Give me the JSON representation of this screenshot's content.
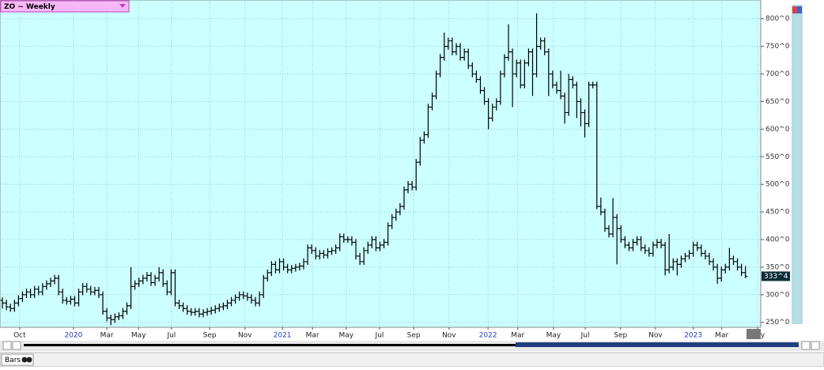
{
  "toolbar": {
    "symbol": "ZO ~ Weekly"
  },
  "chart_data": {
    "type": "ohlc",
    "xlim": [
      -0.6,
      188.8
    ],
    "xticks": [
      {
        "value": 4.3,
        "label": "Oct"
      },
      {
        "value": 17.7,
        "label": "2020"
      },
      {
        "value": 26,
        "label": "Mar"
      },
      {
        "value": 33.9,
        "label": "May"
      },
      {
        "value": 42.1,
        "label": "Jul"
      },
      {
        "value": 51.6,
        "label": "Sep"
      },
      {
        "value": 60.4,
        "label": "Nov"
      },
      {
        "value": 69.7,
        "label": "2021"
      },
      {
        "value": 77.2,
        "label": "Mar"
      },
      {
        "value": 85.6,
        "label": "May"
      },
      {
        "value": 93.9,
        "label": "Jul"
      },
      {
        "value": 102.4,
        "label": "Sep"
      },
      {
        "value": 111.2,
        "label": "Nov"
      },
      {
        "value": 120.9,
        "label": "2022"
      },
      {
        "value": 128.3,
        "label": "Mar"
      },
      {
        "value": 137.2,
        "label": "May"
      },
      {
        "value": 145.1,
        "label": "Jul"
      },
      {
        "value": 153.9,
        "label": "Sep"
      },
      {
        "value": 162.6,
        "label": "Nov"
      },
      {
        "value": 172,
        "label": "2023"
      },
      {
        "value": 179.1,
        "label": "Mar"
      },
      {
        "value": 188,
        "label": "May"
      }
    ],
    "ylim": [
      241,
      834
    ],
    "yticks": [
      {
        "value": 250,
        "label": "250^0"
      },
      {
        "value": 300,
        "label": "300^0"
      },
      {
        "value": 350,
        "label": "350^0"
      },
      {
        "value": 400,
        "label": "400^0"
      },
      {
        "value": 450,
        "label": "450^0"
      },
      {
        "value": 500,
        "label": "500^0"
      },
      {
        "value": 550,
        "label": "550^0"
      },
      {
        "value": 600,
        "label": "600^0"
      },
      {
        "value": 650,
        "label": "650^0"
      },
      {
        "value": 700,
        "label": "700^0"
      },
      {
        "value": 750,
        "label": "750^0"
      },
      {
        "value": 800,
        "label": "800^0"
      }
    ],
    "grid": true,
    "year_label_color": "#1f3fbf",
    "series": [
      {
        "color": "#000000",
        "last_price": {
          "value": 333.5,
          "label": "333^4"
        },
        "ohlc": [
          [
            290,
            295,
            275,
            285
          ],
          [
            285,
            291,
            272,
            278
          ],
          [
            278,
            284,
            269,
            275
          ],
          [
            275,
            291,
            269,
            285
          ],
          [
            285,
            299,
            279,
            293
          ],
          [
            293,
            306,
            287,
            300
          ],
          [
            300,
            311,
            294,
            305
          ],
          [
            305,
            311,
            294,
            300
          ],
          [
            300,
            316,
            294,
            310
          ],
          [
            310,
            316,
            299,
            305
          ],
          [
            305,
            321,
            299,
            315
          ],
          [
            315,
            326,
            309,
            320
          ],
          [
            320,
            331,
            314,
            325
          ],
          [
            325,
            336,
            319,
            330
          ],
          [
            330,
            336,
            299,
            305
          ],
          [
            305,
            311,
            284,
            290
          ],
          [
            290,
            296,
            282,
            288
          ],
          [
            288,
            298,
            282,
            292
          ],
          [
            292,
            298,
            279,
            285
          ],
          [
            285,
            311,
            279,
            305
          ],
          [
            305,
            321,
            299,
            315
          ],
          [
            315,
            321,
            304,
            310
          ],
          [
            310,
            316,
            299,
            305
          ],
          [
            305,
            314,
            299,
            308
          ],
          [
            308,
            314,
            294,
            300
          ],
          [
            300,
            306,
            264,
            270
          ],
          [
            270,
            276,
            252,
            258
          ],
          [
            258,
            264,
            245,
            255
          ],
          [
            255,
            266,
            249,
            260
          ],
          [
            260,
            268,
            254,
            262
          ],
          [
            262,
            276,
            256,
            270
          ],
          [
            270,
            286,
            264,
            280
          ],
          [
            280,
            350,
            274,
            315
          ],
          [
            315,
            326,
            309,
            320
          ],
          [
            320,
            331,
            314,
            325
          ],
          [
            325,
            336,
            319,
            330
          ],
          [
            330,
            341,
            324,
            335
          ],
          [
            335,
            341,
            316,
            322
          ],
          [
            322,
            336,
            316,
            330
          ],
          [
            330,
            350,
            324,
            340
          ],
          [
            340,
            346,
            314,
            320
          ],
          [
            320,
            326,
            299,
            305
          ],
          [
            305,
            346,
            299,
            340
          ],
          [
            340,
            346,
            279,
            285
          ],
          [
            285,
            291,
            274,
            280
          ],
          [
            280,
            286,
            269,
            275
          ],
          [
            275,
            281,
            264,
            270
          ],
          [
            270,
            276,
            262,
            268
          ],
          [
            268,
            276,
            262,
            270
          ],
          [
            270,
            276,
            259,
            265
          ],
          [
            265,
            274,
            259,
            268
          ],
          [
            268,
            276,
            262,
            270
          ],
          [
            270,
            278,
            264,
            272
          ],
          [
            272,
            281,
            266,
            275
          ],
          [
            275,
            284,
            269,
            278
          ],
          [
            278,
            286,
            272,
            280
          ],
          [
            280,
            291,
            274,
            285
          ],
          [
            285,
            296,
            279,
            290
          ],
          [
            290,
            301,
            284,
            295
          ],
          [
            295,
            306,
            289,
            300
          ],
          [
            300,
            306,
            292,
            298
          ],
          [
            298,
            304,
            289,
            295
          ],
          [
            295,
            301,
            284,
            290
          ],
          [
            290,
            296,
            279,
            285
          ],
          [
            285,
            306,
            279,
            300
          ],
          [
            300,
            336,
            294,
            330
          ],
          [
            330,
            346,
            324,
            340
          ],
          [
            340,
            361,
            334,
            355
          ],
          [
            355,
            361,
            339,
            345
          ],
          [
            345,
            366,
            339,
            360
          ],
          [
            360,
            366,
            344,
            350
          ],
          [
            350,
            356,
            339,
            345
          ],
          [
            345,
            354,
            339,
            348
          ],
          [
            348,
            356,
            342,
            350
          ],
          [
            350,
            358,
            344,
            352
          ],
          [
            352,
            366,
            346,
            360
          ],
          [
            360,
            391,
            354,
            385
          ],
          [
            385,
            391,
            374,
            380
          ],
          [
            380,
            386,
            364,
            370
          ],
          [
            370,
            381,
            364,
            375
          ],
          [
            375,
            381,
            366,
            372
          ],
          [
            372,
            384,
            366,
            378
          ],
          [
            378,
            386,
            372,
            380
          ],
          [
            380,
            391,
            374,
            385
          ],
          [
            385,
            411,
            379,
            405
          ],
          [
            405,
            411,
            394,
            400
          ],
          [
            400,
            406,
            394,
            400
          ],
          [
            400,
            406,
            389,
            395
          ],
          [
            395,
            401,
            364,
            370
          ],
          [
            370,
            376,
            354,
            360
          ],
          [
            360,
            386,
            354,
            380
          ],
          [
            380,
            396,
            374,
            390
          ],
          [
            390,
            406,
            384,
            400
          ],
          [
            400,
            406,
            379,
            385
          ],
          [
            385,
            396,
            379,
            390
          ],
          [
            390,
            401,
            384,
            395
          ],
          [
            395,
            431,
            389,
            425
          ],
          [
            425,
            446,
            419,
            440
          ],
          [
            440,
            456,
            434,
            450
          ],
          [
            450,
            466,
            444,
            460
          ],
          [
            460,
            496,
            454,
            490
          ],
          [
            490,
            506,
            484,
            500
          ],
          [
            500,
            506,
            489,
            495
          ],
          [
            495,
            546,
            489,
            540
          ],
          [
            540,
            586,
            534,
            580
          ],
          [
            580,
            596,
            574,
            590
          ],
          [
            590,
            646,
            584,
            640
          ],
          [
            640,
            666,
            634,
            660
          ],
          [
            660,
            706,
            654,
            700
          ],
          [
            700,
            736,
            694,
            730
          ],
          [
            730,
            775,
            724,
            750
          ],
          [
            750,
            766,
            744,
            760
          ],
          [
            760,
            766,
            734,
            740
          ],
          [
            740,
            756,
            734,
            750
          ],
          [
            750,
            756,
            724,
            730
          ],
          [
            730,
            746,
            724,
            740
          ],
          [
            740,
            746,
            709,
            715
          ],
          [
            715,
            721,
            694,
            700
          ],
          [
            700,
            706,
            684,
            690
          ],
          [
            690,
            696,
            664,
            670
          ],
          [
            670,
            676,
            644,
            650
          ],
          [
            650,
            656,
            600,
            620
          ],
          [
            620,
            646,
            614,
            640
          ],
          [
            640,
            656,
            634,
            650
          ],
          [
            650,
            706,
            644,
            700
          ],
          [
            700,
            736,
            694,
            730
          ],
          [
            730,
            790,
            724,
            740
          ],
          [
            740,
            746,
            640,
            700
          ],
          [
            700,
            726,
            694,
            720
          ],
          [
            720,
            726,
            674,
            680
          ],
          [
            680,
            726,
            674,
            720
          ],
          [
            720,
            746,
            714,
            740
          ],
          [
            740,
            746,
            660,
            700
          ],
          [
            700,
            810,
            694,
            750
          ],
          [
            750,
            766,
            744,
            760
          ],
          [
            760,
            766,
            734,
            740
          ],
          [
            740,
            746,
            660,
            700
          ],
          [
            700,
            706,
            674,
            680
          ],
          [
            680,
            686,
            664,
            670
          ],
          [
            670,
            706,
            654,
            660
          ],
          [
            660,
            666,
            610,
            630
          ],
          [
            630,
            700,
            624,
            690
          ],
          [
            690,
            696,
            674,
            680
          ],
          [
            680,
            686,
            620,
            650
          ],
          [
            650,
            656,
            605,
            630
          ],
          [
            630,
            636,
            585,
            610
          ],
          [
            610,
            686,
            604,
            680
          ],
          [
            680,
            686,
            674,
            680
          ],
          [
            680,
            686,
            455,
            460
          ],
          [
            460,
            476,
            444,
            450
          ],
          [
            450,
            456,
            414,
            420
          ],
          [
            420,
            426,
            404,
            410
          ],
          [
            410,
            475,
            404,
            440
          ],
          [
            440,
            446,
            355,
            420
          ],
          [
            420,
            426,
            394,
            400
          ],
          [
            400,
            406,
            384,
            390
          ],
          [
            390,
            396,
            379,
            385
          ],
          [
            385,
            401,
            379,
            395
          ],
          [
            395,
            406,
            389,
            400
          ],
          [
            400,
            406,
            379,
            385
          ],
          [
            385,
            391,
            374,
            380
          ],
          [
            380,
            386,
            369,
            375
          ],
          [
            375,
            396,
            369,
            390
          ],
          [
            390,
            401,
            384,
            395
          ],
          [
            395,
            401,
            384,
            390
          ],
          [
            390,
            396,
            335,
            345
          ],
          [
            345,
            410,
            339,
            350
          ],
          [
            350,
            366,
            344,
            360
          ],
          [
            360,
            366,
            335,
            355
          ],
          [
            355,
            371,
            349,
            365
          ],
          [
            365,
            376,
            359,
            370
          ],
          [
            370,
            381,
            364,
            375
          ],
          [
            375,
            396,
            369,
            390
          ],
          [
            390,
            396,
            379,
            385
          ],
          [
            385,
            391,
            369,
            375
          ],
          [
            375,
            381,
            364,
            370
          ],
          [
            370,
            376,
            354,
            360
          ],
          [
            360,
            366,
            344,
            350
          ],
          [
            350,
            356,
            320,
            330
          ],
          [
            330,
            351,
            324,
            345
          ],
          [
            345,
            356,
            339,
            350
          ],
          [
            350,
            385,
            344,
            365
          ],
          [
            365,
            371,
            354,
            360
          ],
          [
            360,
            366,
            344,
            350
          ],
          [
            350,
            356,
            334,
            340
          ],
          [
            340,
            352,
            330,
            333.5
          ]
        ]
      }
    ]
  },
  "footer": {
    "tab": "Bars"
  }
}
